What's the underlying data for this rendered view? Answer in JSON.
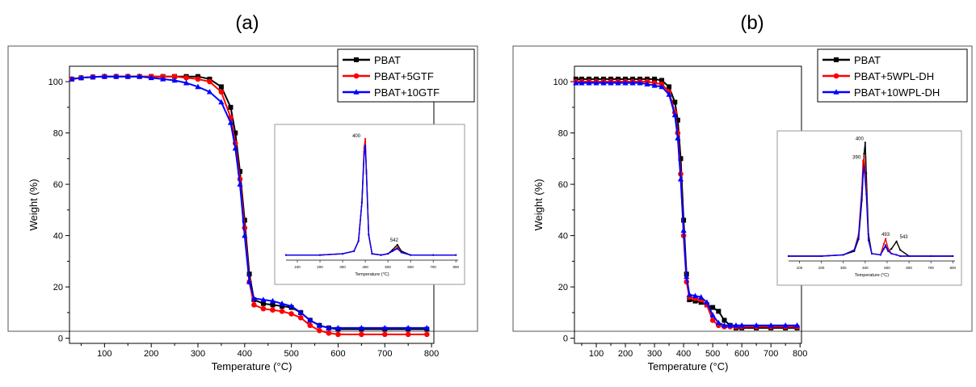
{
  "chart_data": [
    {
      "type": "line",
      "panel_label": "(a)",
      "xlabel": "Temperature (°C)",
      "ylabel": "Weight (%)",
      "xlim": [
        25,
        805
      ],
      "ylim": [
        -2,
        106
      ],
      "xticks": [
        100,
        200,
        300,
        400,
        500,
        600,
        700,
        800
      ],
      "yticks": [
        0,
        20,
        40,
        60,
        80,
        100
      ],
      "legend_position": "top-right",
      "series": [
        {
          "name": "PBAT",
          "color": "#000000",
          "marker": "square",
          "x": [
            30,
            50,
            75,
            100,
            125,
            150,
            175,
            200,
            225,
            250,
            275,
            300,
            325,
            350,
            370,
            380,
            390,
            400,
            410,
            420,
            440,
            460,
            480,
            500,
            520,
            540,
            560,
            580,
            600,
            650,
            700,
            750,
            790
          ],
          "y": [
            101,
            101.5,
            101.8,
            102,
            102,
            102,
            102,
            102,
            102,
            102,
            102,
            102,
            101,
            98,
            90,
            80,
            65,
            46,
            25,
            15,
            13.5,
            13,
            12.5,
            12,
            10,
            7,
            5,
            4,
            3.5,
            3.5,
            3.5,
            3.5,
            3.5
          ]
        },
        {
          "name": "PBAT+5GTF",
          "color": "#ff0000",
          "marker": "circle",
          "x": [
            30,
            50,
            75,
            100,
            125,
            150,
            175,
            200,
            225,
            250,
            275,
            300,
            325,
            350,
            370,
            380,
            390,
            400,
            410,
            420,
            440,
            460,
            480,
            500,
            520,
            540,
            560,
            580,
            600,
            650,
            700,
            750,
            790
          ],
          "y": [
            101,
            101.5,
            101.8,
            102,
            102,
            102,
            102,
            102,
            102,
            102,
            101.5,
            101,
            100,
            96,
            86,
            76,
            62,
            43,
            22,
            13,
            11.5,
            11,
            10.5,
            9.5,
            8,
            5,
            3,
            2,
            1.5,
            1.5,
            1.5,
            1.5,
            1.5
          ]
        },
        {
          "name": "PBAT+10GTF",
          "color": "#0000ff",
          "marker": "triangle",
          "x": [
            30,
            50,
            75,
            100,
            125,
            150,
            175,
            200,
            225,
            250,
            275,
            300,
            325,
            350,
            370,
            380,
            390,
            400,
            410,
            420,
            440,
            460,
            480,
            500,
            520,
            540,
            560,
            580,
            600,
            650,
            700,
            750,
            790
          ],
          "y": [
            101,
            101.5,
            101.8,
            102,
            102,
            102,
            102,
            101.5,
            101,
            100.5,
            99.5,
            98,
            96,
            92,
            84,
            74,
            60,
            40,
            22,
            15.5,
            15,
            14.5,
            13.5,
            12.5,
            10,
            7,
            5,
            4,
            4,
            4,
            4,
            4,
            4
          ]
        }
      ],
      "inset": {
        "type": "line",
        "xlabel": "Temperature (°C)",
        "annotations": [
          "400",
          "542"
        ],
        "xticks": [
          "100",
          "200",
          "300",
          "400",
          "500",
          "600",
          "700",
          "800"
        ],
        "xlim": [
          50,
          810
        ],
        "ylim": [
          0,
          1
        ],
        "series": [
          {
            "color": "#000000",
            "x": [
              50,
              200,
              300,
              350,
              370,
              385,
              395,
              400,
              405,
              415,
              430,
              470,
              500,
              520,
              542,
              560,
              600,
              700,
              800
            ],
            "y": [
              0.04,
              0.04,
              0.05,
              0.07,
              0.15,
              0.45,
              0.85,
              0.93,
              0.7,
              0.2,
              0.05,
              0.04,
              0.05,
              0.08,
              0.12,
              0.07,
              0.04,
              0.04,
              0.04
            ]
          },
          {
            "color": "#ff0000",
            "x": [
              50,
              200,
              300,
              350,
              370,
              385,
              395,
              400,
              405,
              415,
              430,
              470,
              500,
              520,
              542,
              560,
              600,
              700,
              800
            ],
            "y": [
              0.04,
              0.04,
              0.05,
              0.07,
              0.15,
              0.45,
              0.88,
              0.95,
              0.7,
              0.2,
              0.05,
              0.04,
              0.05,
              0.07,
              0.1,
              0.06,
              0.04,
              0.04,
              0.04
            ]
          },
          {
            "color": "#0000ff",
            "x": [
              50,
              200,
              300,
              350,
              370,
              385,
              395,
              400,
              405,
              415,
              430,
              470,
              500,
              520,
              542,
              560,
              600,
              700,
              800
            ],
            "y": [
              0.04,
              0.04,
              0.05,
              0.07,
              0.15,
              0.45,
              0.83,
              0.9,
              0.68,
              0.2,
              0.05,
              0.04,
              0.05,
              0.07,
              0.09,
              0.06,
              0.04,
              0.04,
              0.04
            ]
          }
        ]
      }
    },
    {
      "type": "line",
      "panel_label": "(b)",
      "xlabel": "Temperature (°C)",
      "ylabel": "Weight (%)",
      "xlim": [
        25,
        805
      ],
      "ylim": [
        -2,
        106
      ],
      "xticks": [
        100,
        200,
        300,
        400,
        500,
        600,
        700,
        800
      ],
      "yticks": [
        0,
        20,
        40,
        60,
        80,
        100
      ],
      "legend_position": "top-right",
      "series": [
        {
          "name": "PBAT",
          "color": "#000000",
          "marker": "square",
          "x": [
            30,
            50,
            75,
            100,
            125,
            150,
            175,
            200,
            225,
            250,
            275,
            300,
            325,
            350,
            370,
            380,
            390,
            400,
            410,
            420,
            440,
            460,
            480,
            500,
            520,
            540,
            560,
            580,
            600,
            650,
            700,
            750,
            790
          ],
          "y": [
            101,
            101,
            101,
            101,
            101,
            101,
            101,
            101,
            101,
            101,
            101,
            101,
            100.5,
            98,
            92,
            85,
            70,
            46,
            25,
            15,
            14.5,
            14,
            13,
            12,
            10.5,
            7,
            5,
            4,
            4,
            4,
            4,
            4,
            4
          ]
        },
        {
          "name": "PBAT+5WPL-DH",
          "color": "#ff0000",
          "marker": "circle",
          "x": [
            30,
            50,
            75,
            100,
            125,
            150,
            175,
            200,
            225,
            250,
            275,
            300,
            325,
            350,
            370,
            380,
            390,
            400,
            410,
            420,
            440,
            460,
            480,
            500,
            520,
            540,
            560,
            580,
            600,
            650,
            700,
            750,
            790
          ],
          "y": [
            100,
            100,
            100,
            100,
            100,
            100,
            100,
            100,
            100,
            100,
            100,
            99.5,
            99,
            96,
            88,
            80,
            64,
            40,
            22,
            16,
            15.5,
            15,
            13,
            7,
            5,
            4.5,
            4.5,
            4.5,
            4.5,
            4.5,
            4.5,
            4.5,
            4.5
          ]
        },
        {
          "name": "PBAT+10WPL-DH",
          "color": "#0000ff",
          "marker": "triangle",
          "x": [
            30,
            50,
            75,
            100,
            125,
            150,
            175,
            200,
            225,
            250,
            275,
            300,
            325,
            350,
            370,
            380,
            390,
            400,
            410,
            420,
            440,
            460,
            480,
            500,
            520,
            540,
            560,
            580,
            600,
            650,
            700,
            750,
            790
          ],
          "y": [
            99.5,
            99.5,
            99.5,
            99.5,
            99.5,
            99.5,
            99.5,
            99.5,
            99.5,
            99.5,
            99,
            98.5,
            98,
            95,
            87,
            78,
            62,
            42,
            24,
            17,
            16.5,
            16,
            14,
            9,
            6,
            5,
            5,
            5,
            5,
            5,
            5,
            5,
            5
          ]
        }
      ],
      "inset": {
        "type": "line",
        "xlabel": "Temperature (°C)",
        "annotations": [
          "400",
          "390",
          "493",
          "543"
        ],
        "xticks": [
          "100",
          "200",
          "300",
          "400",
          "500",
          "600",
          "700",
          "800"
        ],
        "xlim": [
          50,
          810
        ],
        "ylim": [
          0,
          1
        ],
        "series": [
          {
            "color": "#000000",
            "x": [
              50,
              200,
              300,
              350,
              370,
              385,
              395,
              400,
              405,
              415,
              430,
              470,
              485,
              493,
              505,
              520,
              543,
              560,
              600,
              700,
              800
            ],
            "y": [
              0.04,
              0.04,
              0.05,
              0.08,
              0.18,
              0.5,
              0.88,
              0.97,
              0.72,
              0.22,
              0.06,
              0.05,
              0.1,
              0.12,
              0.08,
              0.1,
              0.16,
              0.09,
              0.04,
              0.04,
              0.04
            ]
          },
          {
            "color": "#ff0000",
            "x": [
              50,
              200,
              300,
              350,
              370,
              385,
              390,
              395,
              405,
              415,
              430,
              470,
              485,
              493,
              505,
              520,
              543,
              560,
              600,
              700,
              800
            ],
            "y": [
              0.04,
              0.04,
              0.05,
              0.09,
              0.22,
              0.6,
              0.82,
              0.85,
              0.6,
              0.18,
              0.06,
              0.05,
              0.14,
              0.18,
              0.1,
              0.06,
              0.05,
              0.04,
              0.04,
              0.04,
              0.04
            ]
          },
          {
            "color": "#0000ff",
            "x": [
              50,
              200,
              300,
              350,
              370,
              385,
              390,
              395,
              405,
              415,
              430,
              470,
              485,
              493,
              505,
              520,
              543,
              560,
              600,
              700,
              800
            ],
            "y": [
              0.04,
              0.04,
              0.05,
              0.09,
              0.2,
              0.55,
              0.72,
              0.77,
              0.55,
              0.17,
              0.06,
              0.05,
              0.1,
              0.13,
              0.08,
              0.06,
              0.05,
              0.04,
              0.04,
              0.04,
              0.04
            ]
          }
        ]
      }
    }
  ]
}
